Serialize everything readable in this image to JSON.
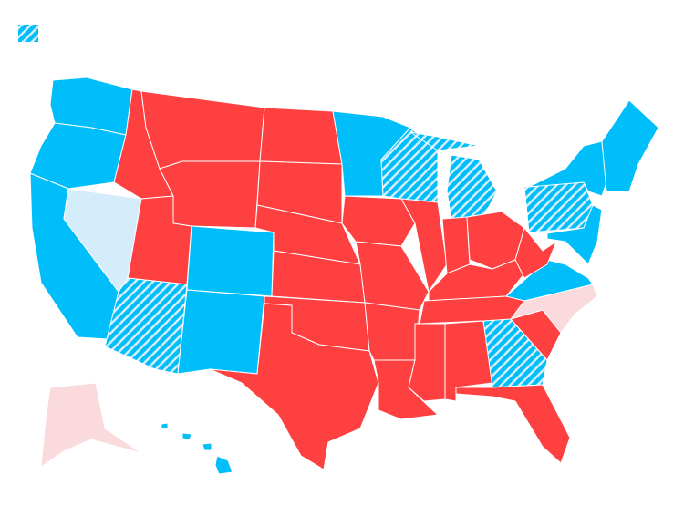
{
  "map": {
    "fills": [
      "#fe4040",
      "#00bef9",
      "#d5edfa",
      "#fadadd"
    ],
    "hatch": {
      "base": "#00bef9",
      "stripe": "#d5edfa"
    },
    "legend": {
      "pattern": "hatch"
    }
  }
}
